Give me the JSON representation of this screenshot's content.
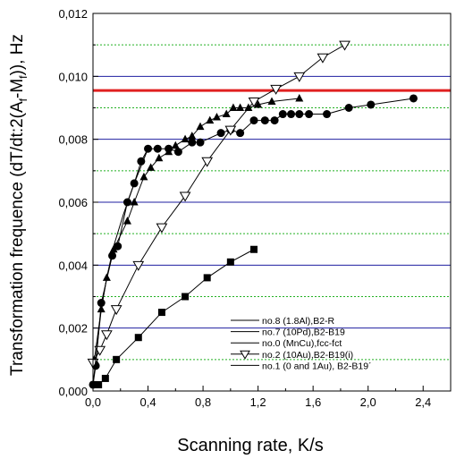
{
  "chart_data": {
    "type": "scatter",
    "xlabel": "Scanning rate, K/s",
    "ylabel": "Transformation frequence (dT/dt:2(A",
    "ylabel_sub1": "f",
    "ylabel_mid": "-M",
    "ylabel_sub2": "f",
    "ylabel_end": ")), Hz",
    "xlim": [
      0,
      2.6
    ],
    "ylim": [
      0,
      0.012
    ],
    "xticks": [
      0.0,
      0.4,
      0.8,
      1.2,
      1.6,
      2.0,
      2.4
    ],
    "xtick_labels": [
      "0,0",
      "0,4",
      "0,8",
      "1,2",
      "1,6",
      "2,0",
      "2,4"
    ],
    "yticks": [
      0.0,
      0.002,
      0.004,
      0.006,
      0.008,
      0.01,
      0.012
    ],
    "ytick_labels": [
      "0,000",
      "0,002",
      "0,004",
      "0,006",
      "0,008",
      "0,010",
      "0,012"
    ],
    "grid_major_y": [
      0.002,
      0.004,
      0.006,
      0.008,
      0.01
    ],
    "grid_major_color": "#1f1fa0",
    "grid_minor_y": [
      0.001,
      0.003,
      0.005,
      0.007,
      0.009,
      0.011
    ],
    "grid_minor_color": "#22b022",
    "reference_line": {
      "y": 0.00955,
      "color": "#e02020"
    },
    "legend_position": "bottom-right",
    "series": [
      {
        "name": "no.8 (1.8Al),B2-R",
        "marker": "circle",
        "x": [
          0.0,
          0.02,
          0.06,
          0.14,
          0.18,
          0.25,
          0.3,
          0.35,
          0.4,
          0.47,
          0.55,
          0.62,
          0.72,
          0.78,
          0.93,
          1.0,
          1.07,
          1.17,
          1.25,
          1.32,
          1.38,
          1.44,
          1.5,
          1.57,
          1.7,
          1.86,
          2.02,
          2.33
        ],
        "y": [
          0.0002,
          0.0008,
          0.0028,
          0.0043,
          0.0046,
          0.006,
          0.0066,
          0.0073,
          0.0077,
          0.0077,
          0.0077,
          0.0076,
          0.0079,
          0.0079,
          0.0082,
          0.0083,
          0.0082,
          0.0086,
          0.0086,
          0.0086,
          0.0088,
          0.0088,
          0.0088,
          0.0088,
          0.0088,
          0.009,
          0.0091,
          0.0093
        ]
      },
      {
        "name": "no.7 (10Pd),B2-B19",
        "marker": "triangle-up",
        "x": [
          0.01,
          0.06,
          0.1,
          0.15,
          0.25,
          0.3,
          0.37,
          0.42,
          0.48,
          0.55,
          0.6,
          0.67,
          0.72,
          0.78,
          0.85,
          0.9,
          0.97,
          1.02,
          1.07,
          1.13,
          1.2,
          1.3,
          1.5
        ],
        "y": [
          0.001,
          0.0026,
          0.0036,
          0.0045,
          0.0054,
          0.006,
          0.0068,
          0.0071,
          0.0074,
          0.0076,
          0.0078,
          0.008,
          0.0081,
          0.0084,
          0.0086,
          0.0087,
          0.0088,
          0.009,
          0.009,
          0.009,
          0.0091,
          0.0092,
          0.0093
        ]
      },
      {
        "name": "no.0 (MnCu),fcc-fct",
        "marker": "square",
        "x": [
          0.01,
          0.04,
          0.09,
          0.17,
          0.33,
          0.5,
          0.67,
          0.83,
          1.0,
          1.17
        ],
        "y": [
          0.0002,
          0.0002,
          0.0004,
          0.001,
          0.0017,
          0.0025,
          0.003,
          0.0036,
          0.0041,
          0.0045
        ]
      },
      {
        "name": "no.2 (10Au),B2-B19(i)",
        "marker": "triangle-down",
        "x": [
          0.0,
          0.05,
          0.1,
          0.17,
          0.33,
          0.5,
          0.67,
          0.83,
          1.0,
          1.17,
          1.33,
          1.5,
          1.67,
          1.83
        ],
        "y": [
          0.0009,
          0.0013,
          0.0018,
          0.0026,
          0.004,
          0.0052,
          0.0062,
          0.0073,
          0.0083,
          0.0092,
          0.0096,
          0.01,
          0.0106,
          0.011
        ]
      },
      {
        "name": "no.1 (0 and 1Au), B2-B19´",
        "marker": "none",
        "x": [
          0.0,
          0.03,
          0.06,
          0.1,
          0.15,
          0.22,
          0.3,
          0.4
        ],
        "y": [
          0.0002,
          0.0014,
          0.0026,
          0.0036,
          0.0046,
          0.0056,
          0.0066,
          0.0077
        ]
      }
    ]
  }
}
